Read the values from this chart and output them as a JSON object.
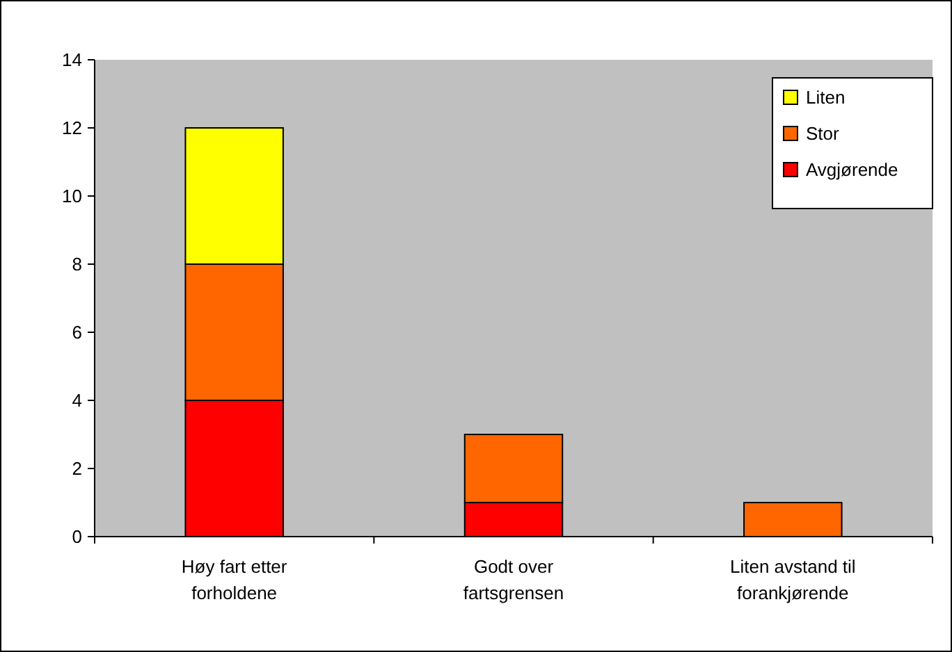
{
  "chart_data": {
    "type": "bar",
    "stacked": true,
    "categories": [
      "Høy fart etter forholdene",
      "Godt over fartsgrensen",
      "Liten avstand til forankjørende"
    ],
    "series": [
      {
        "name": "Avgjørende",
        "color": "#ff0000",
        "values": [
          4,
          1,
          0
        ]
      },
      {
        "name": "Stor",
        "color": "#ff6600",
        "values": [
          4,
          2,
          1
        ]
      },
      {
        "name": "Liten",
        "color": "#ffff00",
        "values": [
          4,
          0,
          0
        ]
      }
    ],
    "ylim": [
      0,
      14
    ],
    "yticks": [
      0,
      2,
      4,
      6,
      8,
      10,
      12,
      14
    ],
    "grid": false,
    "legend": "top right"
  }
}
